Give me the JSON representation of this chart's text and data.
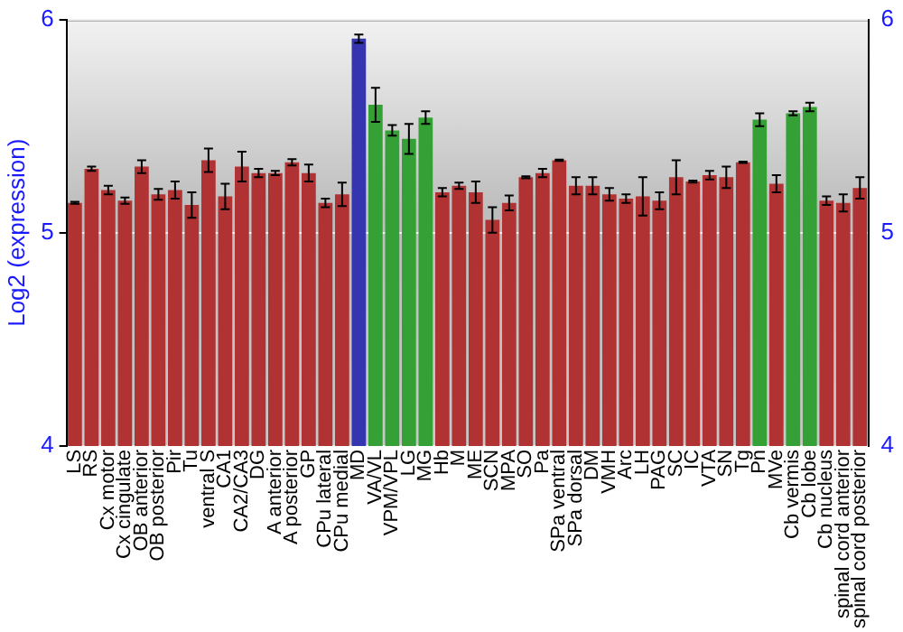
{
  "chart_data": {
    "type": "bar",
    "ylabel": "Log2 (expression)",
    "categories": [
      "LS",
      "RS",
      "Cx motor",
      "Cx cingulate",
      "OB anterior",
      "OB posterior",
      "Pir",
      "Tu",
      "ventral S",
      "CA1",
      "CA2/CA3",
      "DG",
      "A anterior",
      "A posterior",
      "GP",
      "CPu lateral",
      "CPu medial",
      "MD",
      "VA/VL",
      "VPM/VPL",
      "LG",
      "MG",
      "Hb",
      "M",
      "ME",
      "SCN",
      "MPA",
      "SO",
      "Pa",
      "SPa ventral",
      "SPa dorsal",
      "DM",
      "VMH",
      "Arc",
      "LH",
      "PAG",
      "SC",
      "IC",
      "VTA",
      "SN",
      "Tg",
      "Pn",
      "MVe",
      "Cb vermis",
      "Cb lobe",
      "Cb nucleus",
      "spinal cord anterior",
      "spinal cord posterior"
    ],
    "values": [
      5.14,
      5.3,
      5.2,
      5.15,
      5.31,
      5.18,
      5.2,
      5.13,
      5.34,
      5.17,
      5.31,
      5.28,
      5.28,
      5.33,
      5.28,
      5.14,
      5.18,
      5.91,
      5.6,
      5.48,
      5.44,
      5.54,
      5.19,
      5.22,
      5.19,
      5.06,
      5.14,
      5.26,
      5.28,
      5.34,
      5.22,
      5.22,
      5.18,
      5.16,
      5.17,
      5.15,
      5.26,
      5.24,
      5.27,
      5.26,
      5.33,
      5.53,
      5.23,
      5.56,
      5.59,
      5.15,
      5.14,
      5.21
    ],
    "errors": [
      0.005,
      0.01,
      0.02,
      0.015,
      0.03,
      0.025,
      0.04,
      0.06,
      0.055,
      0.06,
      0.07,
      0.02,
      0.01,
      0.015,
      0.04,
      0.02,
      0.055,
      0.02,
      0.08,
      0.025,
      0.07,
      0.03,
      0.02,
      0.015,
      0.05,
      0.06,
      0.035,
      0.005,
      0.02,
      0.003,
      0.04,
      0.04,
      0.03,
      0.02,
      0.09,
      0.04,
      0.08,
      0.005,
      0.02,
      0.05,
      0.003,
      0.03,
      0.04,
      0.01,
      0.02,
      0.02,
      0.04,
      0.05
    ],
    "colors": [
      "#b03232",
      "#b03232",
      "#b03232",
      "#b03232",
      "#b03232",
      "#b03232",
      "#b03232",
      "#b03232",
      "#b03232",
      "#b03232",
      "#b03232",
      "#b03232",
      "#b03232",
      "#b03232",
      "#b03232",
      "#b03232",
      "#b03232",
      "#3535b0",
      "#35a035",
      "#35a035",
      "#35a035",
      "#35a035",
      "#b03232",
      "#b03232",
      "#b03232",
      "#b03232",
      "#b03232",
      "#b03232",
      "#b03232",
      "#b03232",
      "#b03232",
      "#b03232",
      "#b03232",
      "#b03232",
      "#b03232",
      "#b03232",
      "#b03232",
      "#b03232",
      "#b03232",
      "#b03232",
      "#b03232",
      "#35a035",
      "#b03232",
      "#35a035",
      "#35a035",
      "#b03232",
      "#b03232",
      "#b03232"
    ],
    "ylim": [
      4,
      6
    ],
    "yticks": [
      4,
      5,
      6
    ],
    "y2lim": [
      4,
      6
    ],
    "y2ticks": [
      4,
      5,
      6
    ],
    "grid": "y",
    "legend": false
  }
}
